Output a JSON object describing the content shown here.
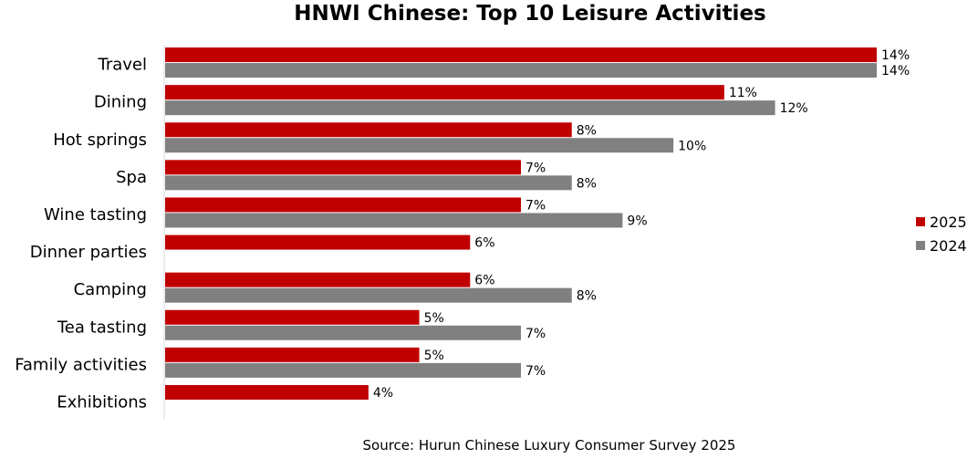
{
  "chart_data": {
    "type": "bar",
    "orientation": "horizontal",
    "title": "HNWI Chinese: Top 10 Leisure Activities",
    "source": "Source: Hurun Chinese Luxury Consumer Survey 2025",
    "categories": [
      "Travel",
      "Dining",
      "Hot springs",
      "Spa",
      "Wine tasting",
      "Dinner parties",
      "Camping",
      "Tea tasting",
      "Family activities",
      "Exhibitions"
    ],
    "series": [
      {
        "name": "2025",
        "color": "#c00000",
        "values": [
          14,
          11,
          8,
          7,
          7,
          6,
          6,
          5,
          5,
          4
        ],
        "labels": [
          "14%",
          "11%",
          "8%",
          "7%",
          "7%",
          "6%",
          "6%",
          "5%",
          "5%",
          "4%"
        ]
      },
      {
        "name": "2024",
        "color": "#808080",
        "values": [
          14,
          12,
          10,
          8,
          9,
          null,
          8,
          7,
          7,
          null
        ],
        "labels": [
          "14%",
          "12%",
          "10%",
          "8%",
          "9%",
          "",
          "8%",
          "7%",
          "7%",
          ""
        ]
      }
    ],
    "xlim": [
      0,
      14
    ],
    "legend_position": "right",
    "grid": false
  }
}
